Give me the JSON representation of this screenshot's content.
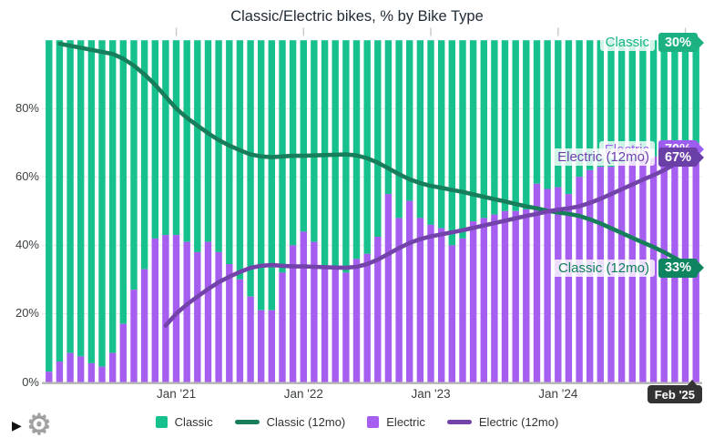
{
  "title": "Classic/Electric bikes, % by Bike Type",
  "colors": {
    "classic_bar": "#17c18d",
    "electric_bar": "#a55ef0",
    "classic_line": "#177e5b",
    "electric_line": "#7442ab",
    "classic_badge": "#1cb183",
    "electric_badge": "#9c5df0",
    "electric_12mo_badge": "#6b3fa8",
    "classic_12mo_badge": "#0e8560",
    "classic_label_text": "#15b586",
    "electric_label_text": "#a55ef0",
    "electric_12mo_label_text": "#6d3fae",
    "classic_12mo_label_text": "#0e7e58",
    "end_label_bg": "#333333",
    "grid": "#e8e8e8",
    "axis": "#b5b5b5",
    "tick": "#c8c8c8"
  },
  "y_axis": {
    "tick_labels": [
      "0%",
      "20%",
      "40%",
      "60%",
      "80%"
    ],
    "tick_values": [
      0,
      20,
      40,
      60,
      80
    ]
  },
  "x_axis": {
    "tick_labels": [
      "Jan '21",
      "Jan '22",
      "Jan '23",
      "Jan '24"
    ],
    "tick_month_indexes": [
      12,
      24,
      36,
      48
    ],
    "extra_tick_indexes": [
      60
    ],
    "end_label": "Feb '25"
  },
  "legend": [
    {
      "label": "Classic",
      "swatch": "square",
      "color_key": "classic_bar"
    },
    {
      "label": "Classic (12mo)",
      "swatch": "line",
      "color_key": "classic_line"
    },
    {
      "label": "Electric",
      "swatch": "square",
      "color_key": "electric_bar"
    },
    {
      "label": "Electric (12mo)",
      "swatch": "line",
      "color_key": "electric_line"
    }
  ],
  "callouts": {
    "classic": {
      "label": "Classic",
      "value": "30%"
    },
    "electric": {
      "label": "Electric",
      "value": "70%"
    },
    "electric_12mo": {
      "label": "Electric (12mo)",
      "value": "67%"
    },
    "classic_12mo": {
      "label": "Classic (12mo)",
      "value": "33%"
    }
  },
  "controls": {
    "play_icon": "▶",
    "gear_icon": "⚙"
  },
  "chart_data": {
    "type": "bar",
    "subtype": "stacked-percent-bars-with-rolling-average-lines",
    "title": "Classic/Electric bikes, % by Bike Type",
    "xlabel": "",
    "ylabel": "",
    "ylim": [
      0,
      100
    ],
    "grid": true,
    "legend_position": "bottom-center",
    "months": [
      "2020-01",
      "2020-02",
      "2020-03",
      "2020-04",
      "2020-05",
      "2020-06",
      "2020-07",
      "2020-08",
      "2020-09",
      "2020-10",
      "2020-11",
      "2020-12",
      "2021-01",
      "2021-02",
      "2021-03",
      "2021-04",
      "2021-05",
      "2021-06",
      "2021-07",
      "2021-08",
      "2021-09",
      "2021-10",
      "2021-11",
      "2021-12",
      "2022-01",
      "2022-02",
      "2022-03",
      "2022-04",
      "2022-05",
      "2022-06",
      "2022-07",
      "2022-08",
      "2022-09",
      "2022-10",
      "2022-11",
      "2022-12",
      "2023-01",
      "2023-02",
      "2023-03",
      "2023-04",
      "2023-05",
      "2023-06",
      "2023-07",
      "2023-08",
      "2023-09",
      "2023-10",
      "2023-11",
      "2023-12",
      "2024-01",
      "2024-02",
      "2024-03",
      "2024-04",
      "2024-05",
      "2024-06",
      "2024-07",
      "2024-08",
      "2024-09",
      "2024-10",
      "2024-11",
      "2024-12",
      "2025-01",
      "2025-02"
    ],
    "series": [
      {
        "name": "Electric",
        "role": "bar-bottom",
        "values": [
          3,
          6,
          8.5,
          7.5,
          5.5,
          4.5,
          8.5,
          17,
          27,
          33,
          42,
          43,
          43,
          41,
          38,
          41,
          38,
          34.5,
          30,
          25,
          21,
          21,
          32,
          40,
          44,
          41,
          33.5,
          33.5,
          32,
          36,
          37.5,
          42.5,
          55,
          48,
          53,
          48,
          46,
          45,
          40,
          42,
          47,
          48,
          49,
          50,
          50,
          50.5,
          58,
          56.5,
          57,
          55,
          60,
          62,
          63,
          63,
          64,
          65,
          66,
          66,
          67,
          67,
          68,
          70
        ]
      },
      {
        "name": "Classic",
        "role": "bar-top",
        "note": "stacked complement, Classic = 100 - Electric"
      },
      {
        "name": "Classic (12mo)",
        "role": "line",
        "values": [
          null,
          99,
          98.4,
          97.8,
          97.2,
          96.6,
          96,
          94.6,
          92.6,
          90,
          87,
          83.5,
          80,
          77.3,
          75,
          72.8,
          70.8,
          69.2,
          67.8,
          66.6,
          66,
          65.8,
          66,
          66.2,
          66.2,
          66.3,
          66.4,
          66.5,
          66.6,
          66.3,
          65.5,
          64.2,
          62.5,
          60.8,
          59.3,
          58.2,
          57.4,
          56.8,
          56.2,
          55.6,
          54.9,
          54.2,
          53.5,
          52.8,
          52.1,
          51.4,
          50.8,
          50.1,
          49.6,
          49.2,
          48.6,
          47.6,
          46.4,
          45,
          43.6,
          42.2,
          40.8,
          39.5,
          38,
          36.3,
          34.6,
          33
        ]
      },
      {
        "name": "Electric (12mo)",
        "role": "line",
        "values": [
          null,
          null,
          null,
          null,
          null,
          null,
          null,
          null,
          null,
          null,
          null,
          16.5,
          20,
          22.7,
          25,
          27.2,
          29.2,
          30.8,
          32.2,
          33.4,
          34,
          34.2,
          34,
          33.8,
          33.8,
          33.7,
          33.6,
          33.5,
          33.4,
          33.7,
          34.5,
          35.8,
          37.5,
          39.2,
          40.7,
          41.8,
          42.6,
          43.2,
          43.8,
          44.4,
          45.1,
          45.8,
          46.5,
          47.2,
          47.9,
          48.6,
          49.2,
          49.9,
          50.4,
          50.8,
          51.4,
          52.4,
          53.6,
          55,
          56.4,
          57.8,
          59.2,
          60.5,
          62,
          63.7,
          65.4,
          67
        ]
      }
    ],
    "final_values": {
      "Classic": 30,
      "Electric": 70,
      "Classic (12mo)": 33,
      "Electric (12mo)": 67
    }
  }
}
